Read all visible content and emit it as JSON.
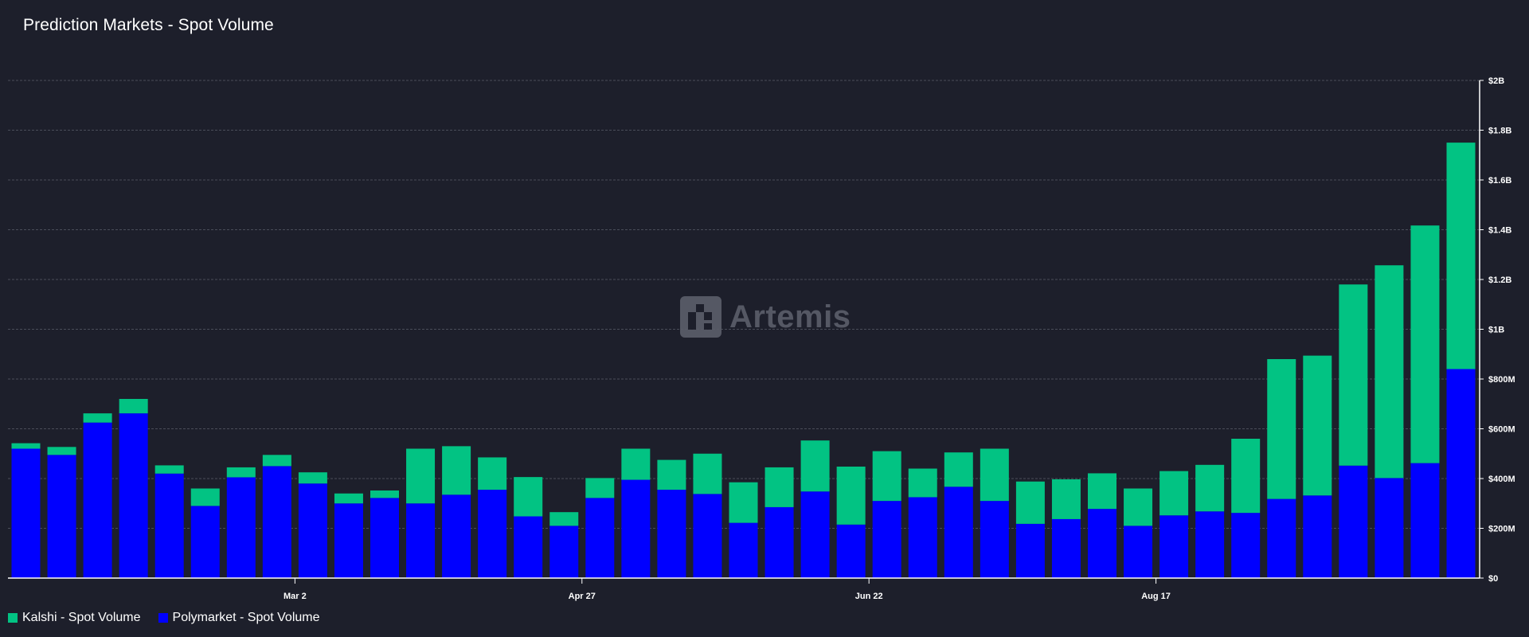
{
  "title": "Prediction Markets - Spot Volume",
  "watermark": "Artemis",
  "colors": {
    "kalshi": "#02c383",
    "polymarket": "#0000ff",
    "grid": "#4a4d59",
    "background": "#1d1f2b"
  },
  "legend": [
    {
      "label": "Kalshi - Spot Volume",
      "color": "#02c383"
    },
    {
      "label": "Polymarket - Spot Volume",
      "color": "#0000ff"
    }
  ],
  "chart_data": {
    "type": "bar",
    "stacked": true,
    "y_axis_position": "right",
    "grid": true,
    "legend_position": "bottom-left",
    "ylim": [
      0,
      2000
    ],
    "y_unit": "millions USD",
    "y_ticks": [
      {
        "value": 0,
        "label": "$0"
      },
      {
        "value": 200,
        "label": "$200M"
      },
      {
        "value": 400,
        "label": "$400M"
      },
      {
        "value": 600,
        "label": "$600M"
      },
      {
        "value": 800,
        "label": "$800M"
      },
      {
        "value": 1000,
        "label": "$1B"
      },
      {
        "value": 1200,
        "label": "$1.2B"
      },
      {
        "value": 1400,
        "label": "$1.4B"
      },
      {
        "value": 1600,
        "label": "$1.6B"
      },
      {
        "value": 1800,
        "label": "$1.8B"
      },
      {
        "value": 2000,
        "label": "$2B"
      }
    ],
    "x_ticks": [
      {
        "index": 8,
        "label": "Mar 2"
      },
      {
        "index": 16,
        "label": "Apr 27"
      },
      {
        "index": 24,
        "label": "Jun 22"
      },
      {
        "index": 32,
        "label": "Aug 17"
      }
    ],
    "series": [
      {
        "name": "Polymarket - Spot Volume",
        "values": [
          520,
          495,
          625,
          662,
          420,
          290,
          405,
          450,
          380,
          300,
          322,
          300,
          335,
          355,
          248,
          210,
          322,
          395,
          355,
          338,
          222,
          285,
          348,
          215,
          310,
          325,
          367,
          310,
          218,
          237,
          278,
          210,
          252,
          268,
          262,
          318,
          332,
          452,
          402,
          462,
          840
        ]
      },
      {
        "name": "Kalshi - Spot Volume",
        "values": [
          22,
          32,
          37,
          58,
          33,
          70,
          40,
          45,
          45,
          40,
          30,
          220,
          195,
          130,
          158,
          55,
          80,
          125,
          120,
          162,
          163,
          160,
          205,
          233,
          200,
          115,
          138,
          210,
          170,
          160,
          143,
          150,
          178,
          187,
          298,
          562,
          562,
          728,
          855,
          955,
          910
        ]
      }
    ]
  }
}
